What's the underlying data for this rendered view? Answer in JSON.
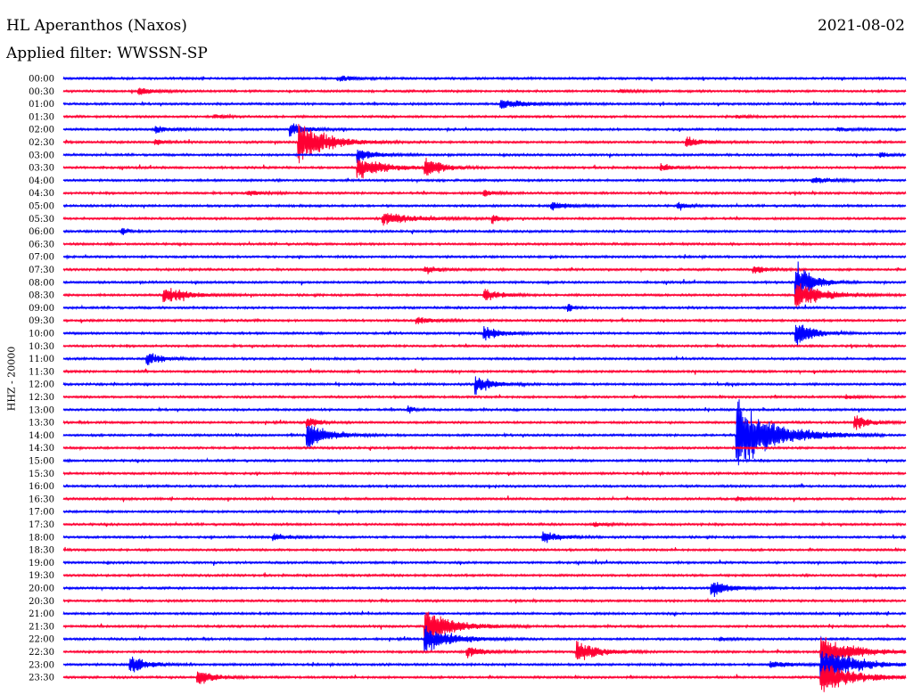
{
  "header": {
    "station": "HL Aperanthos (Naxos)",
    "date": "2021-08-02",
    "filter": "Applied filter: WWSSN-SP"
  },
  "colors": {
    "blue": "#0000ff",
    "red": "#ff0033"
  },
  "chart_data": {
    "type": "line",
    "ylabel": "HHZ - 20000",
    "time_labels": [
      "00:00",
      "00:30",
      "01:00",
      "01:30",
      "02:00",
      "02:30",
      "03:00",
      "03:30",
      "04:00",
      "04:30",
      "05:00",
      "05:30",
      "06:00",
      "06:30",
      "07:00",
      "07:30",
      "08:00",
      "08:30",
      "09:00",
      "09:30",
      "10:00",
      "10:30",
      "11:00",
      "11:30",
      "12:00",
      "12:30",
      "13:00",
      "13:30",
      "14:00",
      "14:30",
      "15:00",
      "15:30",
      "16:00",
      "16:30",
      "17:00",
      "17:30",
      "18:00",
      "18:30",
      "19:00",
      "19:30",
      "20:00",
      "20:30",
      "21:00",
      "21:30",
      "22:00",
      "22:30",
      "23:00",
      "23:30"
    ],
    "trace_colors": "alternating blue / red by row, starting blue",
    "events": [
      {
        "row": 0,
        "x": 0.33,
        "amp": 0.4,
        "dur": 0.03
      },
      {
        "row": 1,
        "x": 0.09,
        "amp": 0.6,
        "dur": 0.03
      },
      {
        "row": 1,
        "x": 0.66,
        "amp": 0.2,
        "dur": 0.03
      },
      {
        "row": 2,
        "x": 0.52,
        "amp": 0.8,
        "dur": 0.05
      },
      {
        "row": 3,
        "x": 0.18,
        "amp": 0.3,
        "dur": 0.02
      },
      {
        "row": 3,
        "x": 0.8,
        "amp": 0.3,
        "dur": 0.02
      },
      {
        "row": 4,
        "x": 0.27,
        "amp": 1.0,
        "dur": 0.03
      },
      {
        "row": 4,
        "x": 0.11,
        "amp": 0.5,
        "dur": 0.03
      },
      {
        "row": 4,
        "x": 0.92,
        "amp": 0.3,
        "dur": 0.03
      },
      {
        "row": 5,
        "x": 0.28,
        "amp": 3.5,
        "dur": 0.05
      },
      {
        "row": 5,
        "x": 0.74,
        "amp": 0.8,
        "dur": 0.03
      },
      {
        "row": 5,
        "x": 0.11,
        "amp": 0.4,
        "dur": 0.02
      },
      {
        "row": 6,
        "x": 0.35,
        "amp": 1.2,
        "dur": 0.03
      },
      {
        "row": 6,
        "x": 0.97,
        "amp": 0.4,
        "dur": 0.02
      },
      {
        "row": 7,
        "x": 0.35,
        "amp": 1.8,
        "dur": 0.05
      },
      {
        "row": 7,
        "x": 0.43,
        "amp": 1.6,
        "dur": 0.03
      },
      {
        "row": 7,
        "x": 0.71,
        "amp": 0.7,
        "dur": 0.02
      },
      {
        "row": 8,
        "x": 0.89,
        "amp": 0.6,
        "dur": 0.03
      },
      {
        "row": 9,
        "x": 0.22,
        "amp": 0.4,
        "dur": 0.03
      },
      {
        "row": 9,
        "x": 0.5,
        "amp": 0.6,
        "dur": 0.02
      },
      {
        "row": 10,
        "x": 0.58,
        "amp": 0.7,
        "dur": 0.03
      },
      {
        "row": 10,
        "x": 0.73,
        "amp": 0.6,
        "dur": 0.02
      },
      {
        "row": 11,
        "x": 0.38,
        "amp": 1.0,
        "dur": 0.06
      },
      {
        "row": 11,
        "x": 0.51,
        "amp": 0.9,
        "dur": 0.01
      },
      {
        "row": 12,
        "x": 0.07,
        "amp": 0.6,
        "dur": 0.01
      },
      {
        "row": 15,
        "x": 0.82,
        "amp": 0.6,
        "dur": 0.03
      },
      {
        "row": 15,
        "x": 0.43,
        "amp": 0.5,
        "dur": 0.03
      },
      {
        "row": 16,
        "x": 0.87,
        "amp": 3.5,
        "dur": 0.03
      },
      {
        "row": 17,
        "x": 0.12,
        "amp": 1.5,
        "dur": 0.04
      },
      {
        "row": 17,
        "x": 0.5,
        "amp": 1.0,
        "dur": 0.03
      },
      {
        "row": 17,
        "x": 0.87,
        "amp": 2.2,
        "dur": 0.05
      },
      {
        "row": 18,
        "x": 0.6,
        "amp": 0.8,
        "dur": 0.01
      },
      {
        "row": 19,
        "x": 0.42,
        "amp": 0.5,
        "dur": 0.04
      },
      {
        "row": 20,
        "x": 0.5,
        "amp": 1.2,
        "dur": 0.03
      },
      {
        "row": 20,
        "x": 0.87,
        "amp": 2.2,
        "dur": 0.03
      },
      {
        "row": 22,
        "x": 0.1,
        "amp": 1.0,
        "dur": 0.03
      },
      {
        "row": 24,
        "x": 0.49,
        "amp": 1.5,
        "dur": 0.03
      },
      {
        "row": 25,
        "x": 0.93,
        "amp": 0.4,
        "dur": 0.02
      },
      {
        "row": 26,
        "x": 0.41,
        "amp": 0.6,
        "dur": 0.01
      },
      {
        "row": 27,
        "x": 0.29,
        "amp": 1.0,
        "dur": 0.02
      },
      {
        "row": 27,
        "x": 0.94,
        "amp": 1.2,
        "dur": 0.03
      },
      {
        "row": 28,
        "x": 0.29,
        "amp": 2.2,
        "dur": 0.04
      },
      {
        "row": 28,
        "x": 0.8,
        "amp": 5.5,
        "dur": 0.07
      },
      {
        "row": 33,
        "x": 0.8,
        "amp": 0.4,
        "dur": 0.02
      },
      {
        "row": 35,
        "x": 0.63,
        "amp": 0.4,
        "dur": 0.02
      },
      {
        "row": 36,
        "x": 0.25,
        "amp": 0.6,
        "dur": 0.03
      },
      {
        "row": 36,
        "x": 0.57,
        "amp": 1.0,
        "dur": 0.03
      },
      {
        "row": 40,
        "x": 0.77,
        "amp": 1.5,
        "dur": 0.03
      },
      {
        "row": 43,
        "x": 0.43,
        "amp": 3.0,
        "dur": 0.05
      },
      {
        "row": 44,
        "x": 0.43,
        "amp": 2.2,
        "dur": 0.05
      },
      {
        "row": 44,
        "x": 0.78,
        "amp": 0.3,
        "dur": 0.02
      },
      {
        "row": 45,
        "x": 0.48,
        "amp": 0.9,
        "dur": 0.03
      },
      {
        "row": 45,
        "x": 0.61,
        "amp": 1.8,
        "dur": 0.04
      },
      {
        "row": 45,
        "x": 0.9,
        "amp": 2.5,
        "dur": 0.06
      },
      {
        "row": 46,
        "x": 0.08,
        "amp": 1.6,
        "dur": 0.03
      },
      {
        "row": 46,
        "x": 0.84,
        "amp": 0.6,
        "dur": 0.04
      },
      {
        "row": 46,
        "x": 0.9,
        "amp": 3.0,
        "dur": 0.06
      },
      {
        "row": 47,
        "x": 0.16,
        "amp": 1.3,
        "dur": 0.03
      },
      {
        "row": 47,
        "x": 0.9,
        "amp": 2.5,
        "dur": 0.06
      }
    ]
  }
}
